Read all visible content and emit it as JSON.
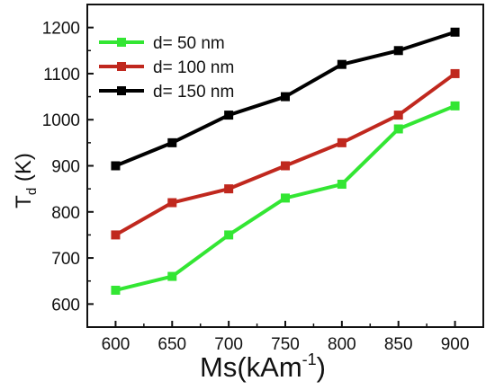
{
  "chart_data": {
    "type": "line",
    "xlabel": "Ms(kAm",
    "xlabel_sup": "-1",
    "xlabel_close": ")",
    "ylabel_main": "T",
    "ylabel_sub": "d",
    "ylabel_rest": " (K)",
    "x": [
      600,
      650,
      700,
      750,
      800,
      850,
      900
    ],
    "xlim": [
      575,
      925
    ],
    "ylim": [
      550,
      1250
    ],
    "xticks": [
      600,
      650,
      700,
      750,
      800,
      850,
      900
    ],
    "yticks": [
      600,
      700,
      800,
      900,
      1000,
      1100,
      1200
    ],
    "legend_position": "top-left",
    "grid": false,
    "series": [
      {
        "name": "d= 50 nm",
        "color": "#33e633",
        "values": [
          630,
          660,
          750,
          830,
          860,
          980,
          1030
        ]
      },
      {
        "name": "d= 100 nm",
        "color": "#c0281e",
        "values": [
          750,
          820,
          850,
          900,
          950,
          1010,
          1100
        ]
      },
      {
        "name": "d= 150 nm",
        "color": "#000000",
        "values": [
          900,
          950,
          1010,
          1050,
          1120,
          1150,
          1190
        ]
      }
    ]
  }
}
